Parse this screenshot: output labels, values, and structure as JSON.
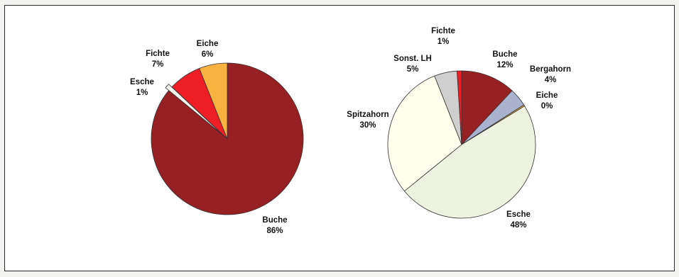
{
  "chart_data": [
    {
      "type": "pie",
      "slices": [
        {
          "label": "Buche",
          "value": 86,
          "display": "86%",
          "color": "#962022"
        },
        {
          "label": "Esche",
          "value": 1,
          "display": "1%",
          "color": "#f4f4ea"
        },
        {
          "label": "Fichte",
          "value": 7,
          "display": "7%",
          "color": "#ee1e26"
        },
        {
          "label": "Eiche",
          "value": 6,
          "display": "6%",
          "color": "#f7b23f"
        }
      ]
    },
    {
      "type": "pie",
      "slices": [
        {
          "label": "Buche",
          "value": 12,
          "display": "12%",
          "color": "#962022"
        },
        {
          "label": "Bergahorn",
          "value": 4,
          "display": "4%",
          "color": "#a9b3ce"
        },
        {
          "label": "Eiche",
          "value": 0.3,
          "display": "0%",
          "color": "#f7b23f"
        },
        {
          "label": "Esche",
          "value": 48,
          "display": "48%",
          "color": "#edf3e0"
        },
        {
          "label": "Spitzahorn",
          "value": 30,
          "display": "30%",
          "color": "#fffeec"
        },
        {
          "label": "Sonst. LH",
          "value": 5,
          "display": "5%",
          "color": "#cfcfcf"
        },
        {
          "label": "Fichte",
          "value": 1,
          "display": "1%",
          "color": "#ee1e26"
        }
      ]
    }
  ]
}
